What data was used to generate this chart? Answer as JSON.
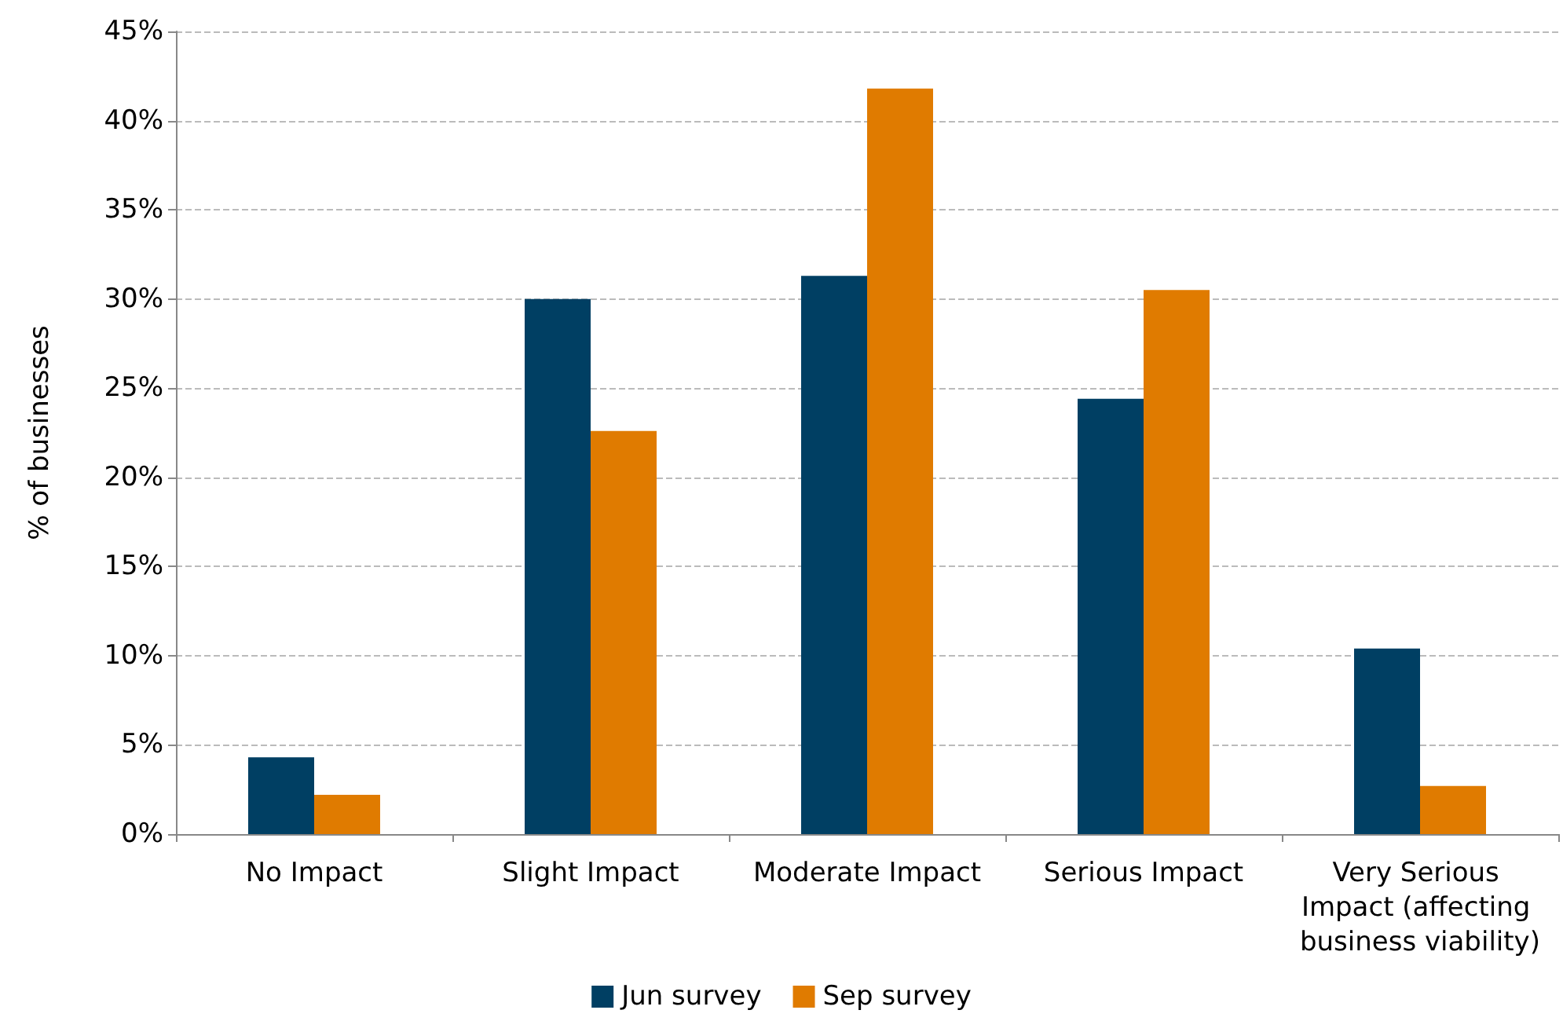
{
  "chart_data": {
    "type": "bar",
    "ylabel": "% of businesses",
    "categories": [
      "No Impact",
      "Slight Impact",
      "Moderate Impact",
      "Serious Impact",
      "Very Serious Impact (affecting business viability)"
    ],
    "series": [
      {
        "name": "Jun survey",
        "color": "#003f63",
        "values": [
          4.3,
          30.0,
          31.3,
          24.4,
          10.4
        ]
      },
      {
        "name": "Sep survey",
        "color": "#e07b00",
        "values": [
          2.2,
          22.6,
          41.8,
          30.5,
          2.7
        ]
      }
    ],
    "ylim": [
      0,
      45
    ],
    "yticks": [
      {
        "value": 0,
        "label": "0%"
      },
      {
        "value": 5,
        "label": "5%"
      },
      {
        "value": 10,
        "label": "10%"
      },
      {
        "value": 15,
        "label": "15%"
      },
      {
        "value": 20,
        "label": "20%"
      },
      {
        "value": 25,
        "label": "25%"
      },
      {
        "value": 30,
        "label": "30%"
      },
      {
        "value": 35,
        "label": "35%"
      },
      {
        "value": 40,
        "label": "40%"
      },
      {
        "value": 45,
        "label": "45%"
      }
    ],
    "grid": "y",
    "legend": "bottom"
  }
}
